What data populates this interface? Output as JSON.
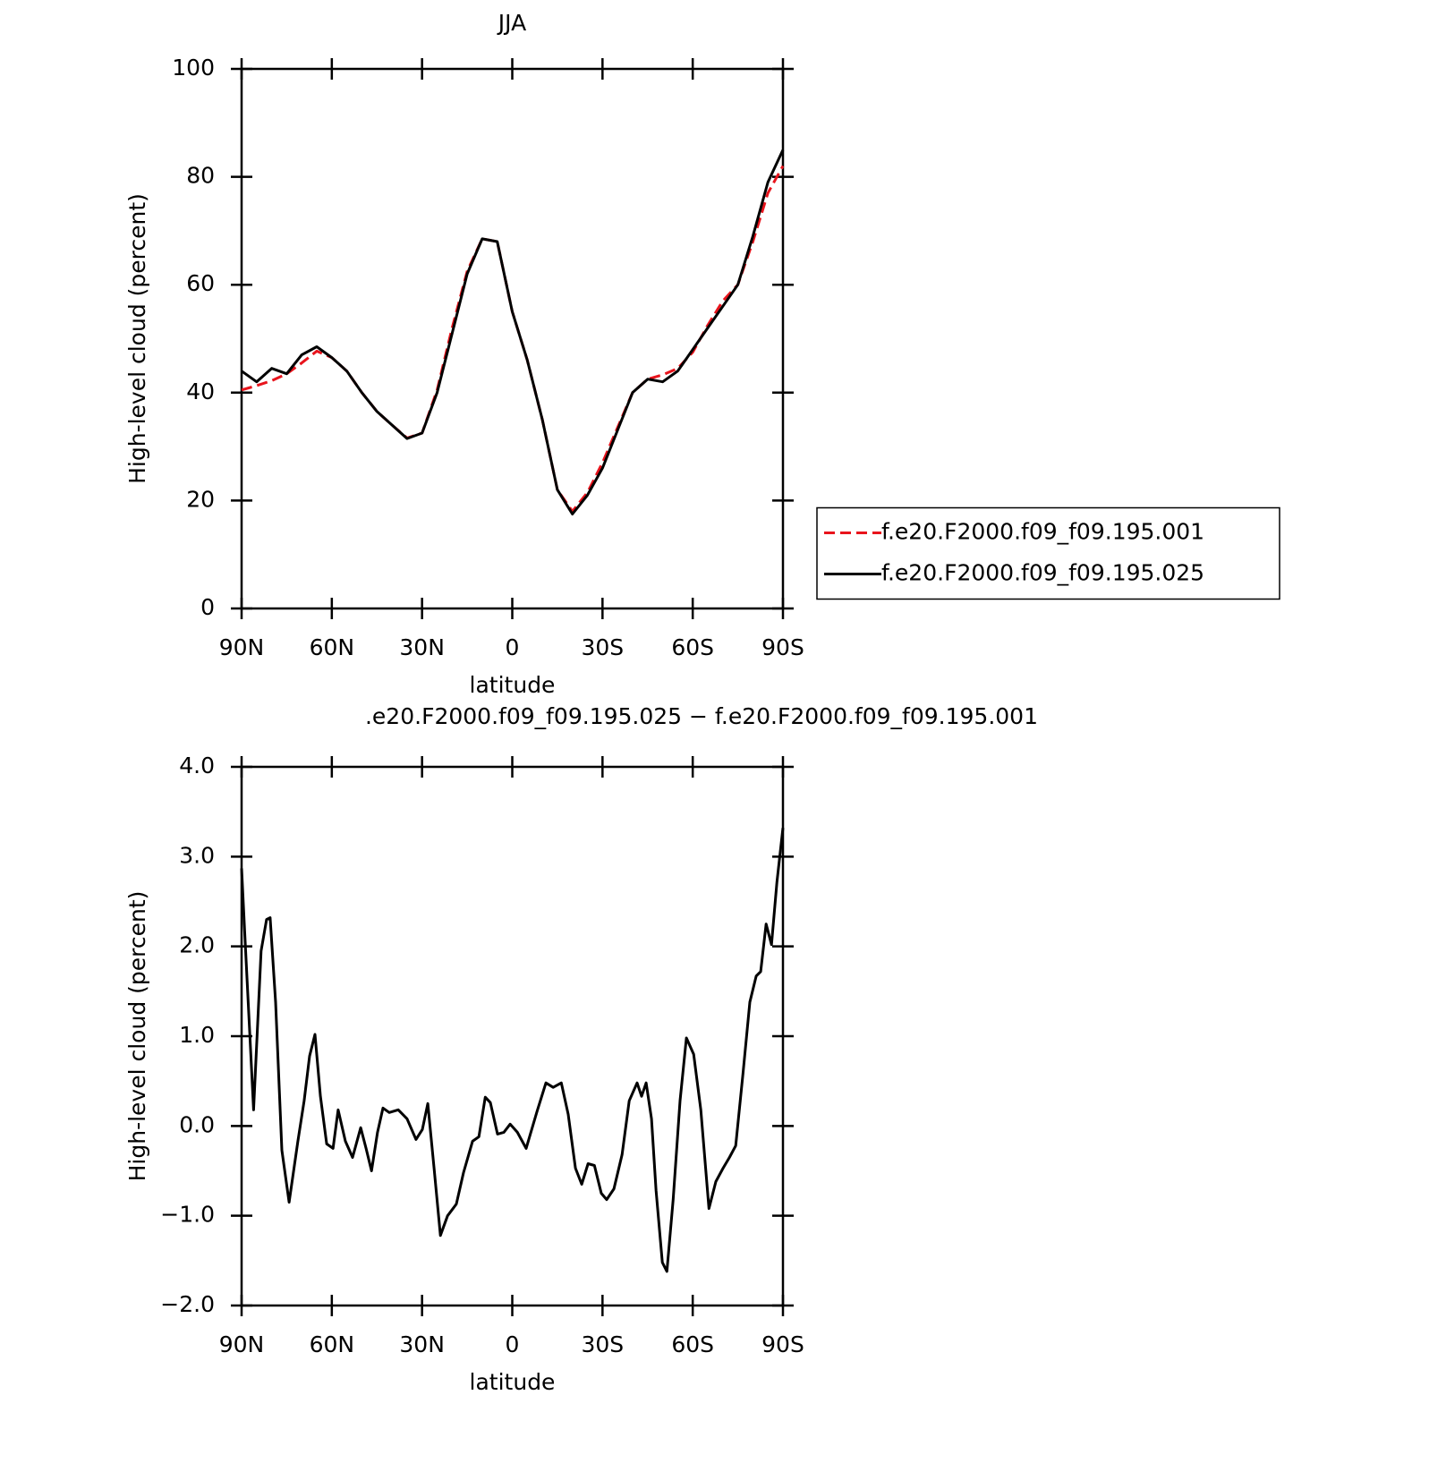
{
  "chart_data": [
    {
      "type": "line",
      "title": "JJA",
      "x_label": "latitude",
      "y_label": "High-level cloud (percent)",
      "xlim": [
        90,
        -90
      ],
      "xticks": [
        {
          "value": 90,
          "label": "90N"
        },
        {
          "value": 60,
          "label": "60N"
        },
        {
          "value": 30,
          "label": "30N"
        },
        0,
        {
          "value": -30,
          "label": "30S"
        },
        {
          "value": -60,
          "label": "60S"
        },
        {
          "value": -90,
          "label": "90S"
        }
      ],
      "ylim": [
        0,
        100
      ],
      "yticks": [
        0,
        20,
        40,
        60,
        80,
        100
      ],
      "x": [
        90,
        85,
        80,
        75,
        70,
        65,
        60,
        55,
        50,
        45,
        40,
        35,
        30,
        25,
        20,
        15,
        10,
        5,
        0,
        -5,
        -10,
        -15,
        -20,
        -25,
        -30,
        -35,
        -40,
        -45,
        -50,
        -55,
        -60,
        -65,
        -70,
        -75,
        -80,
        -85,
        -90
      ],
      "legend": "right",
      "series": [
        {
          "name": "f.e20.F2000.f09_f09.195.001",
          "color": "#e8141c",
          "dash": true,
          "values": [
            40.5,
            41.3,
            42.2,
            43.5,
            45.5,
            47.7,
            46.5,
            44,
            40,
            36.5,
            34,
            31.6,
            32.5,
            40.5,
            52,
            62.5,
            68.5,
            68,
            55,
            46,
            35,
            22,
            18,
            21.5,
            27,
            33.5,
            40,
            42.5,
            43.3,
            44.5,
            47.5,
            52.5,
            57,
            60,
            68,
            77,
            82
          ]
        },
        {
          "name": "f.e20.F2000.f09_f09.195.025",
          "color": "#000000",
          "dash": false,
          "values": [
            44,
            42,
            44.5,
            43.5,
            47,
            48.5,
            46.5,
            44,
            40,
            36.5,
            34,
            31.5,
            32.5,
            40,
            51,
            62,
            68.5,
            68,
            55,
            46,
            35,
            22,
            17.5,
            21,
            26,
            33,
            40,
            42.5,
            42,
            44,
            48,
            52,
            56,
            60,
            69,
            79,
            85
          ]
        }
      ]
    },
    {
      "type": "line",
      "title": ".e20.F2000.f09_f09.195.025 − f.e20.F2000.f09_f09.195.001",
      "x_label": "latitude",
      "y_label": "High-level cloud (percent)",
      "xlim": [
        90,
        -90
      ],
      "xticks": [
        {
          "value": 90,
          "label": "90N"
        },
        {
          "value": 60,
          "label": "60N"
        },
        {
          "value": 30,
          "label": "30N"
        },
        0,
        {
          "value": -30,
          "label": "30S"
        },
        {
          "value": -60,
          "label": "60S"
        },
        {
          "value": -90,
          "label": "90S"
        }
      ],
      "ylim": [
        -2,
        4
      ],
      "yticks": [
        {
          "value": -2,
          "label": "−2.0"
        },
        {
          "value": -1,
          "label": "−1.0"
        },
        {
          "value": 0,
          "label": "0.0"
        },
        {
          "value": 1,
          "label": "1.0"
        },
        {
          "value": 2,
          "label": "2.0"
        },
        {
          "value": 3,
          "label": "3.0"
        },
        {
          "value": 4,
          "label": "4.0"
        }
      ],
      "x": [
        90,
        89,
        86,
        83.5,
        81.7,
        80.5,
        78.7,
        76.6,
        74.2,
        71.3,
        69.2,
        67.4,
        65.6,
        63.8,
        61.7,
        59.6,
        57.9,
        55.5,
        53.1,
        50.4,
        48.6,
        46.8,
        44.8,
        43,
        40.9,
        37.9,
        35,
        32,
        29.9,
        28.1,
        26,
        23.9,
        21.5,
        18.6,
        16.2,
        13.2,
        11.1,
        9,
        7.3,
        4.9,
        2.8,
        0.7,
        -1.7,
        -4.6,
        -8.2,
        -11.2,
        -13.6,
        -16.3,
        -18.6,
        -21,
        -23.1,
        -25.2,
        -27.3,
        -29.6,
        -31.4,
        -33.8,
        -36.5,
        -38.9,
        -41.5,
        -43,
        -44.5,
        -46.3,
        -47.8,
        -49.9,
        -51.4,
        -53.5,
        -55.8,
        -57.9,
        -60.3,
        -62.7,
        -65.4,
        -67.7,
        -70.1,
        -72.2,
        -74.3,
        -76.7,
        -79,
        -81.1,
        -82.6,
        -84.4,
        -86.2,
        -88,
        -90
      ],
      "series": [
        {
          "color": "#000000",
          "dash": false,
          "values": [
            2.87,
            2.17,
            0.18,
            1.95,
            2.3,
            2.32,
            1.38,
            -0.27,
            -0.85,
            -0.17,
            0.28,
            0.78,
            1.02,
            0.33,
            -0.2,
            -0.25,
            0.18,
            -0.17,
            -0.35,
            -0.02,
            -0.25,
            -0.5,
            -0.07,
            0.2,
            0.15,
            0.18,
            0.08,
            -0.15,
            -0.04,
            0.25,
            -0.47,
            -1.22,
            -1,
            -0.87,
            -0.52,
            -0.17,
            -0.12,
            0.32,
            0.26,
            -0.09,
            -0.07,
            0.02,
            -0.07,
            -0.25,
            0.16,
            0.48,
            0.43,
            0.48,
            0.13,
            -0.47,
            -0.65,
            -0.42,
            -0.44,
            -0.75,
            -0.82,
            -0.7,
            -0.32,
            0.28,
            0.48,
            0.33,
            0.48,
            0.08,
            -0.72,
            -1.52,
            -1.62,
            -0.82,
            0.28,
            0.98,
            0.8,
            0.18,
            -0.92,
            -0.62,
            -0.47,
            -0.35,
            -0.22,
            0.58,
            1.38,
            1.67,
            1.72,
            2.25,
            2.02,
            2.72,
            3.32
          ]
        }
      ]
    }
  ]
}
